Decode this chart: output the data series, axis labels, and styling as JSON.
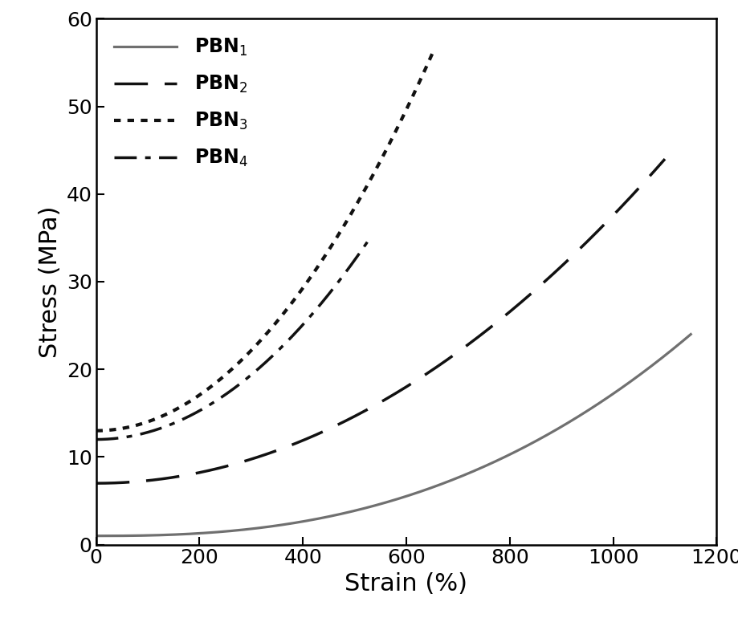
{
  "title": "",
  "xlabel": "Strain (%)",
  "ylabel": "Stress (MPa)",
  "xlim": [
    0,
    1200
  ],
  "ylim": [
    0,
    60
  ],
  "xticks": [
    0,
    200,
    400,
    600,
    800,
    1000,
    1200
  ],
  "yticks": [
    0,
    10,
    20,
    30,
    40,
    50,
    60
  ],
  "legend_entries": [
    "PBN$_1$",
    "PBN$_2$",
    "PBN$_3$",
    "PBN$_4$"
  ],
  "PBN1_color": "#707070",
  "PBN1_x_end": 1150,
  "PBN1_y_start": 1.0,
  "PBN1_y_end": 24.0,
  "PBN2_color": "#111111",
  "PBN2_x_end": 1100,
  "PBN2_y_start": 7.0,
  "PBN2_y_end": 44.0,
  "PBN3_color": "#111111",
  "PBN3_x_end": 650,
  "PBN3_y_start": 13.0,
  "PBN3_y_end": 56.0,
  "PBN4_color": "#111111",
  "PBN4_x_end": 530,
  "PBN4_y_start": 12.0,
  "PBN4_y_end": 35.0,
  "background_color": "#ffffff",
  "font_size_label": 22,
  "font_size_tick": 18,
  "font_size_legend": 16,
  "linewidth_solid": 2.3,
  "linewidth_others": 2.5
}
